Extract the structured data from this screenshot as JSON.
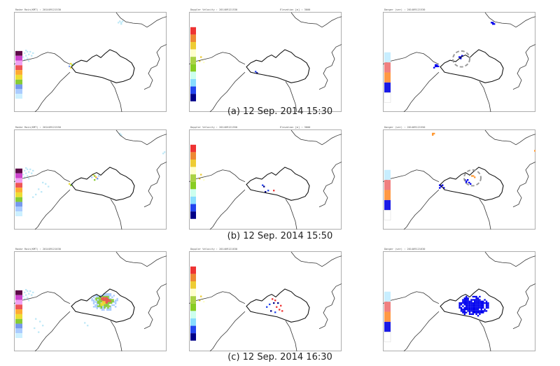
{
  "rows": [
    {
      "caption": "(a) 12 Sep. 2014 15:30",
      "panels": [
        {
          "type": "reflectivity",
          "title": "Radar Rain(KMT) : 201409121530",
          "extra": ""
        },
        {
          "type": "velocity",
          "title": "Doppler Velocity : 201409121530",
          "extra": "Elevation [m] :     3000"
        },
        {
          "type": "danger",
          "title": "Danger (ver) : 201409121530",
          "extra": ""
        }
      ]
    },
    {
      "caption": "(b) 12 Sep. 2014 15:50",
      "panels": [
        {
          "type": "reflectivity",
          "title": "Radar Rain(KMT) : 201409121550",
          "extra": ""
        },
        {
          "type": "velocity",
          "title": "Doppler Velocity : 201409121550",
          "extra": "Elevation [m] :     3000"
        },
        {
          "type": "danger",
          "title": "Danger (ver) : 201409121550",
          "extra": ""
        }
      ]
    },
    {
      "caption": "(c) 12 Sep. 2014 16:30",
      "panels": [
        {
          "type": "reflectivity",
          "title": "Radar Rain(KMT) : 201409121630",
          "extra": ""
        },
        {
          "type": "velocity",
          "title": "Doppler Velocity : 201409121630",
          "extra": ""
        },
        {
          "type": "danger",
          "title": "Danger (ver) : 201409121630",
          "extra": ""
        }
      ]
    }
  ],
  "colors": {
    "reflectivity_scale": [
      "#5c0a48",
      "#cc44cc",
      "#f0a0f0",
      "#ee5555",
      "#ffaa33",
      "#eedd33",
      "#88cc33",
      "#7799ee",
      "#aaccff",
      "#ccf0ff"
    ],
    "velocity_scale": [
      "#ee3333",
      "#ee8833",
      "#eecc33",
      "#ffffcc",
      "#aad244",
      "#88cc22",
      "#ccffee",
      "#88ddff",
      "#2244ee",
      "#000088"
    ],
    "danger_scale": [
      "#c8eeff",
      "#f08080",
      "#ff9944",
      "#1a1ae6",
      "#ffffff"
    ],
    "echo_light": "#bfe9f7",
    "danger_blue": "#0000ee",
    "danger_orange": "#ff9933"
  }
}
